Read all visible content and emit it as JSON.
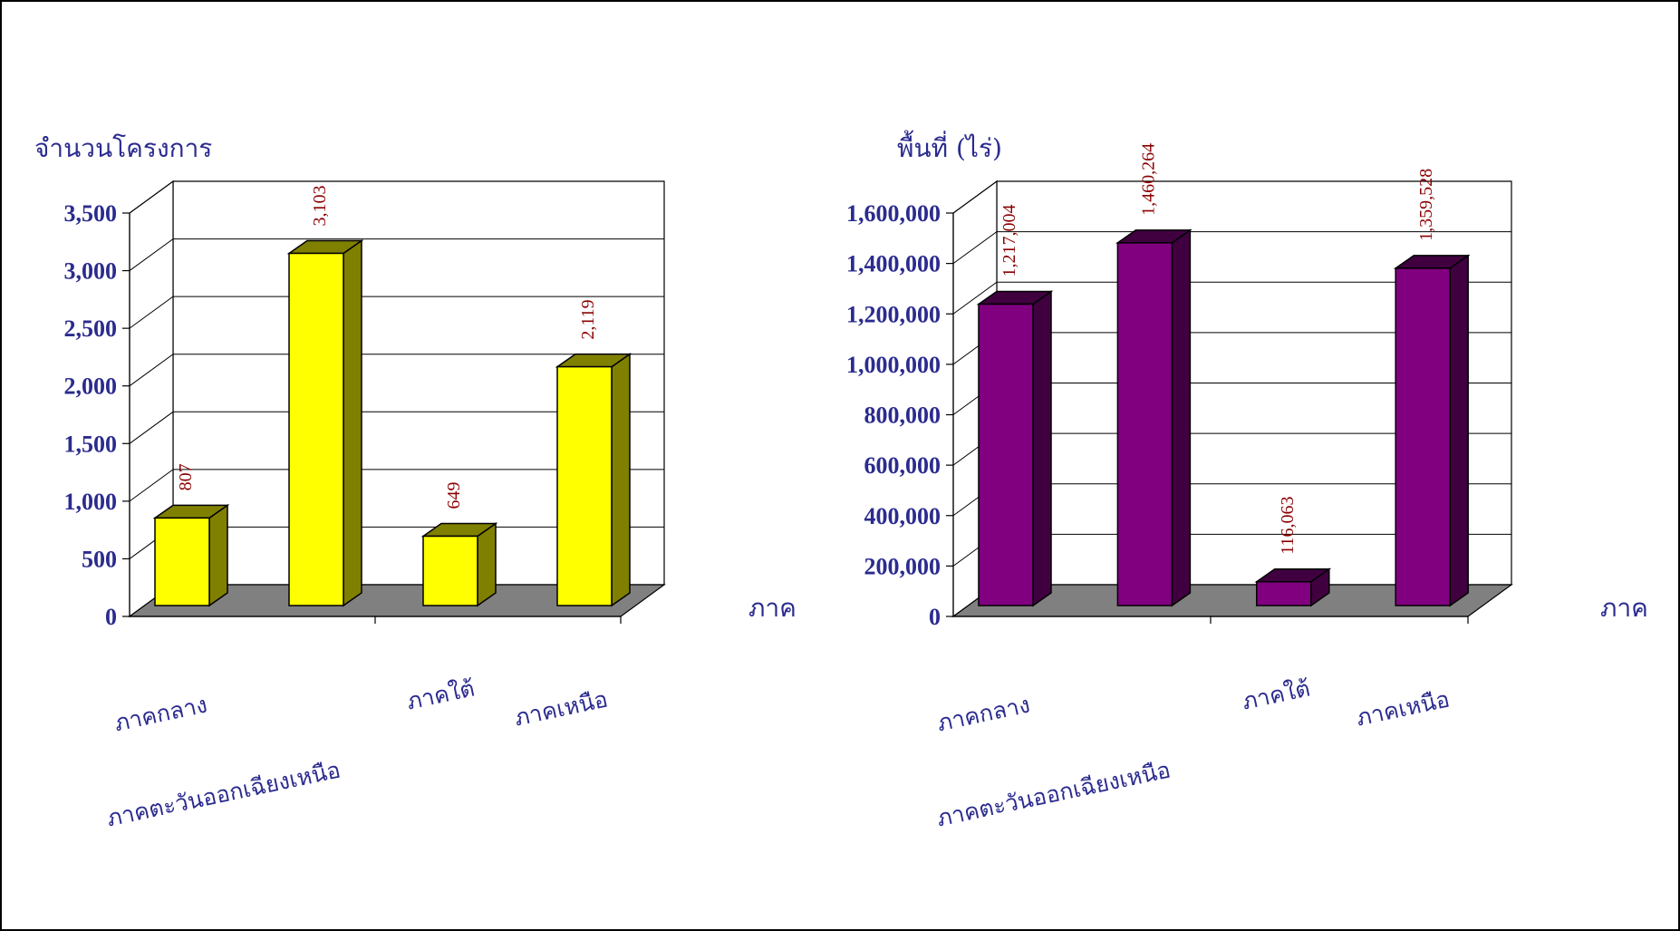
{
  "chart_data": [
    {
      "type": "bar",
      "title": "จำนวนโครงการ",
      "xlabel": "ภาค",
      "ylabel": "จำนวนโครงการ",
      "categories": [
        "ภาคกลาง",
        "ภาคตะวันออกเฉียงเหนือ",
        "ภาคใต้",
        "ภาคเหนือ"
      ],
      "values": [
        807,
        3103,
        649,
        2119
      ],
      "value_labels": [
        "807",
        "3,103",
        "649",
        "2,119"
      ],
      "ylim": [
        0,
        3500
      ],
      "yticks": [
        "0",
        "500",
        "1,000",
        "1,500",
        "2,000",
        "2,500",
        "3,000",
        "3,500"
      ],
      "style": "3d-column",
      "bar_color": "#ffff00",
      "bar_side_color": "#808000",
      "grid": true
    },
    {
      "type": "bar",
      "title": "พื้นที่ (ไร่)",
      "xlabel": "ภาค",
      "ylabel": "พื้นที่ (ไร่)",
      "categories": [
        "ภาคกลาง",
        "ภาคตะวันออกเฉียงเหนือ",
        "ภาคใต้",
        "ภาคเหนือ"
      ],
      "values": [
        1217004,
        1460264,
        116063,
        1359528
      ],
      "value_labels": [
        "1,217,004",
        "1,460,264",
        "116,063",
        "1,359,528"
      ],
      "ylim": [
        0,
        1600000
      ],
      "yticks": [
        "0",
        "200,000",
        "400,000",
        "600,000",
        "800,000",
        "1,000,000",
        "1,200,000",
        "1,400,000",
        "1,600,000"
      ],
      "style": "3d-column",
      "bar_color": "#800080",
      "bar_side_color": "#400040",
      "grid": true
    }
  ]
}
